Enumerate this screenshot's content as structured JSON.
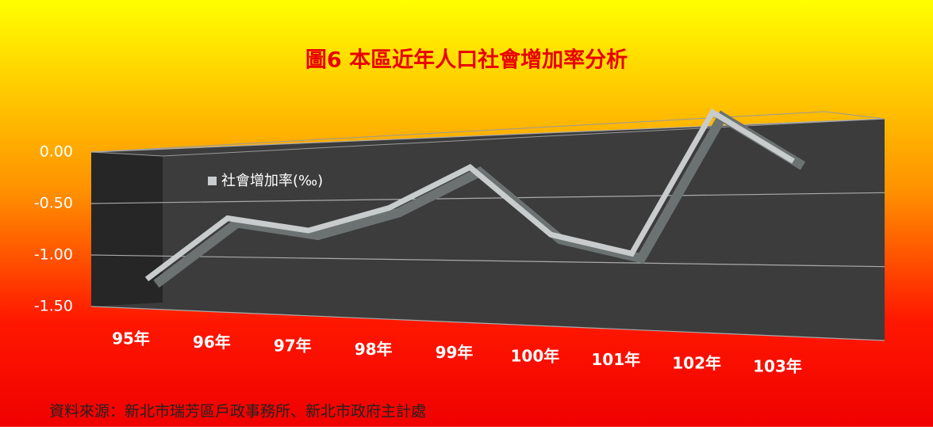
{
  "chart_data": {
    "type": "line",
    "title": "圖6  本區近年人口社會增加率分析",
    "categories": [
      "95年",
      "96年",
      "97年",
      "98年",
      "99年",
      "100年",
      "101年",
      "102年",
      "103年"
    ],
    "series": [
      {
        "name": "社會增加率(‰)",
        "color": "#c8cccc",
        "values": [
          -1.22,
          -0.65,
          -0.76,
          -0.57,
          -0.25,
          -0.79,
          -0.93,
          0.1,
          -0.27
        ]
      }
    ],
    "ylim": [
      -1.5,
      0
    ],
    "yticks": [
      {
        "value": 0,
        "label": "0.00"
      },
      {
        "value": -0.5,
        "label": "-0.50"
      },
      {
        "value": -1,
        "label": "-1.00"
      },
      {
        "value": -1.5,
        "label": "-1.50"
      }
    ],
    "grid": true,
    "note": "資料來源：新北市瑞芳區戶政事務所、新北市政府主計處"
  }
}
